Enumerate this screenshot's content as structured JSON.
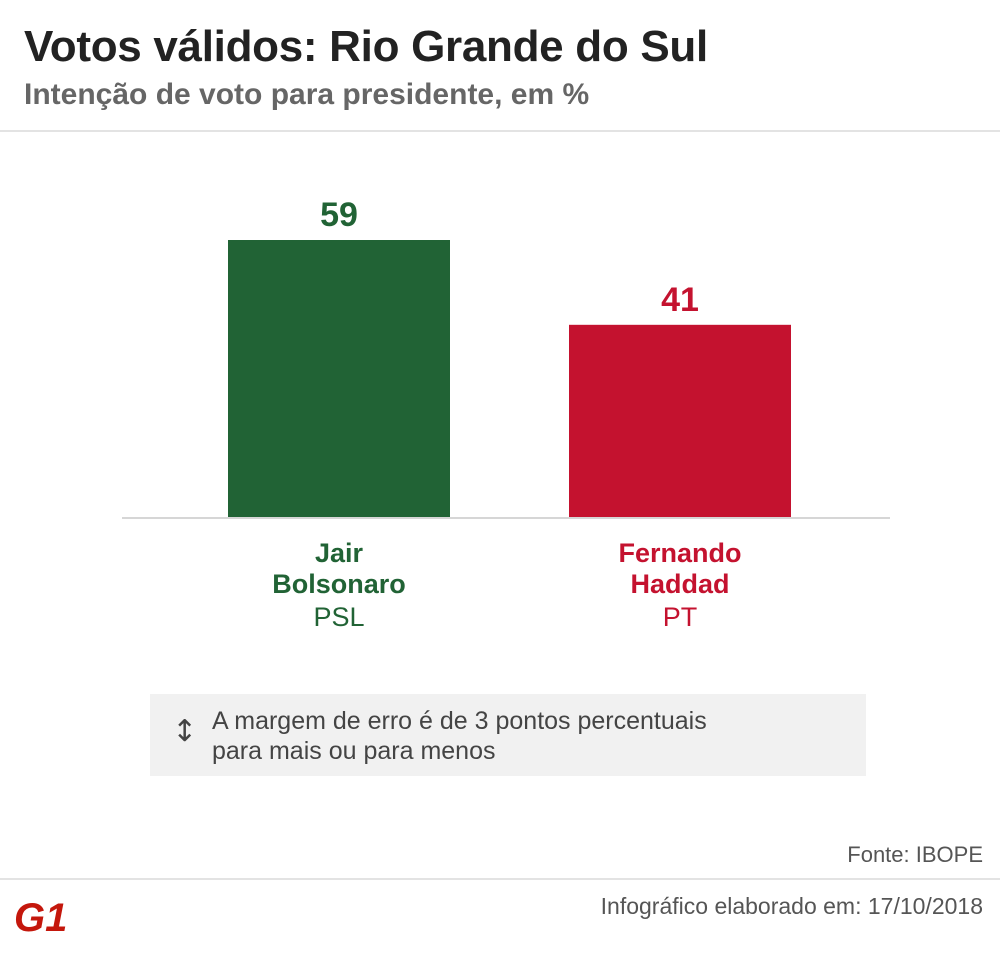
{
  "header": {
    "title": "Votos válidos: Rio Grande do Sul",
    "subtitle": "Intenção de voto para presidente, em %"
  },
  "chart_data": {
    "type": "bar",
    "categories": [
      "Jair Bolsonaro",
      "Fernando Haddad"
    ],
    "category_lines": [
      [
        "Jair",
        "Bolsonaro"
      ],
      [
        "Fernando",
        "Haddad"
      ]
    ],
    "parties": [
      "PSL",
      "PT"
    ],
    "values": [
      59,
      41
    ],
    "colors": [
      "#216335",
      "#c4122f"
    ],
    "ylim": [
      0,
      59
    ],
    "grid": false,
    "legend": "none",
    "value_labels": [
      "59",
      "41"
    ]
  },
  "note": {
    "icon": "up-down-arrow-icon",
    "icon_glyph": "↕",
    "lines": [
      "A margem de erro é de 3 pontos percentuais",
      "para mais ou para menos"
    ]
  },
  "footer": {
    "source": "Fonte: IBOPE",
    "date": "Infográfico elaborado em: 17/10/2018",
    "logo_text": "G1",
    "logo_color": "#c4170c"
  }
}
